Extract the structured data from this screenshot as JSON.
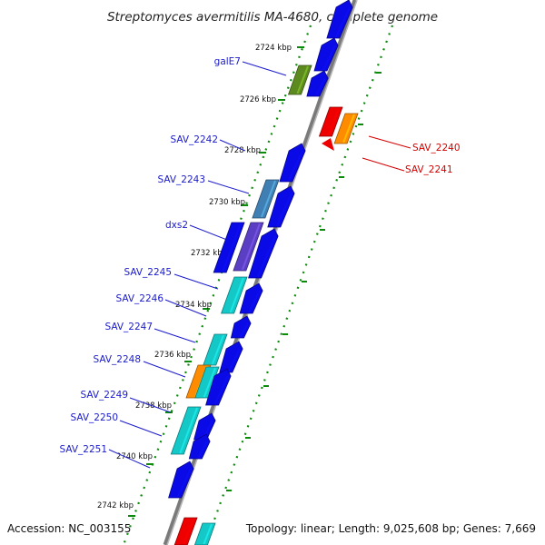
{
  "title": "Streptomyces avermitilis MA-4680, complete genome",
  "footer": {
    "accession": "Accession: NC_003155",
    "topology": "Topology: linear; Length: 9,025,608 bp; Genes: 7,669"
  },
  "kbp_ticks": [
    "2724 kbp",
    "2726 kbp",
    "2728 kbp",
    "2730 kbp",
    "2732 kbp",
    "2734 kbp",
    "2736 kbp",
    "2738 kbp",
    "2740 kbp",
    "2742 kbp"
  ],
  "gene_labels_left": [
    "galE7",
    "SAV_2242",
    "SAV_2243",
    "dxs2",
    "SAV_2245",
    "SAV_2246",
    "SAV_2247",
    "SAV_2248",
    "SAV_2249",
    "SAV_2250",
    "SAV_2251"
  ],
  "gene_labels_right": [
    "SAV_2240",
    "SAV_2241"
  ],
  "colors": {
    "label_blue": "#1a1acc",
    "label_red": "#d40000",
    "gene_blue": "#0a0ae6",
    "gene_cyan": "#14c8c8",
    "gene_steel": "#3f7fb3",
    "gene_purple": "#5a3fc4",
    "gene_olive": "#5c8a1e",
    "gene_orange": "#ff8c00",
    "gene_red": "#ee0000",
    "backbone": "#808080",
    "tick_green": "#0b8a0b"
  }
}
